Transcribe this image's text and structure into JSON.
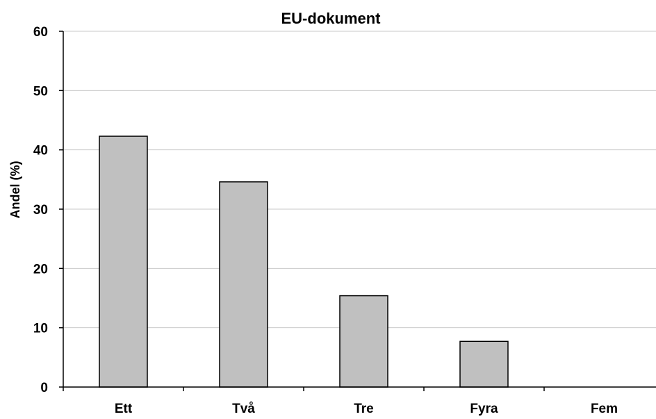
{
  "chart_data": {
    "type": "bar",
    "title": "EU-dokument",
    "xlabel": "",
    "ylabel": "Andel (%)",
    "categories": [
      "Ett",
      "Två",
      "Tre",
      "Fyra",
      "Fem"
    ],
    "values": [
      42.3,
      34.6,
      15.4,
      7.7,
      0
    ],
    "ylim": [
      0,
      60
    ],
    "yticks": [
      0,
      10,
      20,
      30,
      40,
      50,
      60
    ],
    "grid": true,
    "legend": "none"
  },
  "colors": {
    "bar_fill": "#c0c0c0",
    "bar_stroke": "#000000",
    "grid": "#c8c8c8",
    "axis": "#000000"
  }
}
